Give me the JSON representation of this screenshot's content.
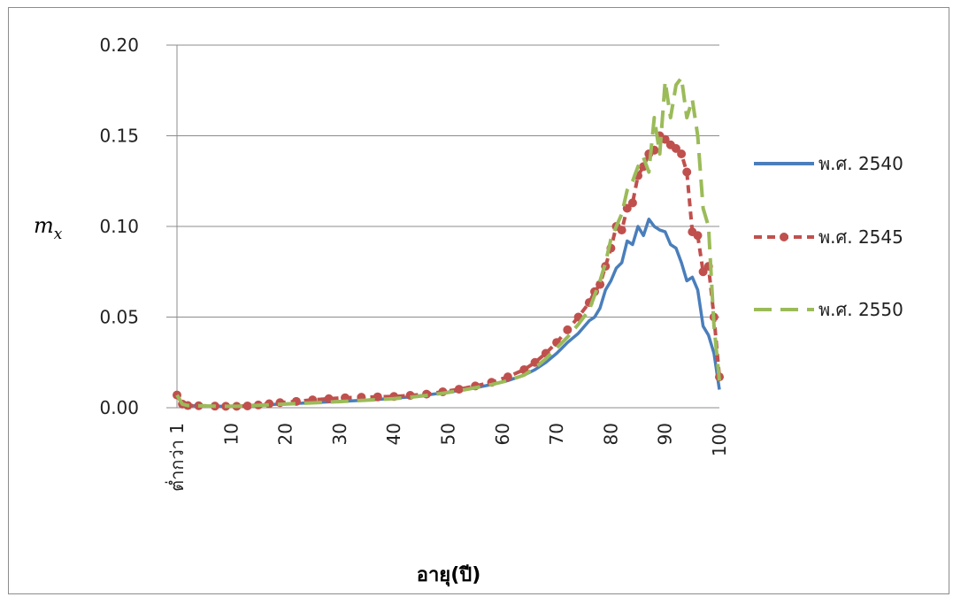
{
  "chart_data": {
    "type": "line",
    "title": "",
    "xlabel": "อายุ(ปี)",
    "ylabel": "m",
    "ylabel_sub": "x",
    "xlim": [
      1,
      101
    ],
    "ylim": [
      0,
      0.2
    ],
    "yticks": [
      0.0,
      0.05,
      0.1,
      0.15,
      0.2
    ],
    "ytick_labels": [
      "0.00",
      "0.05",
      "0.10",
      "0.15",
      "0.20"
    ],
    "xticks": [
      1,
      11,
      21,
      31,
      41,
      51,
      61,
      71,
      81,
      91,
      101
    ],
    "xtick_labels": [
      "ต่ำกว่า 1",
      "10",
      "20",
      "30",
      "40",
      "50",
      "60",
      "70",
      "80",
      "90",
      "100"
    ],
    "grid": "horizontal",
    "legend_position": "right",
    "series": [
      {
        "name": "พ.ศ. 2540",
        "color": "#4a7ebb",
        "style": "solid",
        "x": [
          1,
          2,
          3,
          5,
          8,
          10,
          12,
          14,
          16,
          18,
          20,
          23,
          26,
          29,
          32,
          35,
          38,
          41,
          44,
          47,
          50,
          53,
          56,
          59,
          62,
          65,
          67,
          69,
          71,
          73,
          75,
          77,
          78,
          79,
          80,
          81,
          82,
          83,
          84,
          85,
          86,
          87,
          88,
          89,
          90,
          91,
          92,
          93,
          94,
          95,
          96,
          97,
          98,
          99,
          100,
          101
        ],
        "values": [
          0.007,
          0.002,
          0.0012,
          0.001,
          0.0009,
          0.0008,
          0.0008,
          0.001,
          0.0013,
          0.0017,
          0.002,
          0.0024,
          0.0028,
          0.0032,
          0.0036,
          0.0041,
          0.0046,
          0.0052,
          0.006,
          0.007,
          0.0082,
          0.0095,
          0.011,
          0.0128,
          0.015,
          0.018,
          0.021,
          0.025,
          0.03,
          0.036,
          0.041,
          0.048,
          0.05,
          0.055,
          0.065,
          0.07,
          0.077,
          0.08,
          0.092,
          0.09,
          0.1,
          0.095,
          0.104,
          0.1,
          0.098,
          0.097,
          0.09,
          0.088,
          0.08,
          0.07,
          0.072,
          0.065,
          0.045,
          0.04,
          0.03,
          0.01
        ]
      },
      {
        "name": "พ.ศ. 2545",
        "color": "#c0504d",
        "style": "dashed-marker",
        "x": [
          1,
          2,
          3,
          5,
          8,
          10,
          12,
          14,
          16,
          18,
          20,
          23,
          26,
          29,
          32,
          35,
          38,
          41,
          44,
          47,
          50,
          53,
          56,
          59,
          62,
          65,
          67,
          69,
          71,
          73,
          75,
          77,
          78,
          79,
          80,
          81,
          82,
          83,
          84,
          85,
          86,
          87,
          88,
          89,
          90,
          91,
          92,
          93,
          94,
          95,
          96,
          97,
          98,
          99,
          100,
          101
        ],
        "values": [
          0.007,
          0.002,
          0.0012,
          0.0011,
          0.0009,
          0.0008,
          0.0008,
          0.001,
          0.0015,
          0.0022,
          0.0028,
          0.0035,
          0.0043,
          0.005,
          0.0055,
          0.0058,
          0.006,
          0.0062,
          0.0068,
          0.0075,
          0.0088,
          0.0102,
          0.012,
          0.014,
          0.017,
          0.021,
          0.025,
          0.03,
          0.036,
          0.043,
          0.05,
          0.058,
          0.064,
          0.068,
          0.078,
          0.088,
          0.1,
          0.098,
          0.11,
          0.113,
          0.128,
          0.133,
          0.14,
          0.142,
          0.15,
          0.148,
          0.145,
          0.143,
          0.14,
          0.13,
          0.097,
          0.095,
          0.075,
          0.078,
          0.05,
          0.017
        ]
      },
      {
        "name": "พ.ศ. 2550",
        "color": "#9bbb59",
        "style": "dashed",
        "x": [
          1,
          2,
          3,
          5,
          8,
          10,
          12,
          14,
          16,
          18,
          20,
          23,
          26,
          29,
          32,
          35,
          38,
          41,
          44,
          47,
          50,
          53,
          56,
          59,
          62,
          65,
          67,
          69,
          71,
          73,
          75,
          77,
          78,
          79,
          80,
          81,
          82,
          83,
          84,
          85,
          86,
          87,
          88,
          89,
          90,
          91,
          92,
          93,
          94,
          95,
          96,
          97,
          98,
          99,
          100,
          101
        ],
        "values": [
          0.007,
          0.002,
          0.0012,
          0.001,
          0.0009,
          0.0008,
          0.0008,
          0.001,
          0.0013,
          0.0016,
          0.0019,
          0.0023,
          0.0027,
          0.0031,
          0.0035,
          0.004,
          0.0045,
          0.005,
          0.0058,
          0.0068,
          0.008,
          0.0093,
          0.011,
          0.0128,
          0.015,
          0.018,
          0.022,
          0.027,
          0.033,
          0.039,
          0.046,
          0.054,
          0.062,
          0.07,
          0.08,
          0.093,
          0.1,
          0.107,
          0.12,
          0.125,
          0.133,
          0.138,
          0.13,
          0.16,
          0.14,
          0.18,
          0.16,
          0.178,
          0.182,
          0.16,
          0.17,
          0.15,
          0.11,
          0.1,
          0.045,
          0.015
        ]
      }
    ]
  }
}
